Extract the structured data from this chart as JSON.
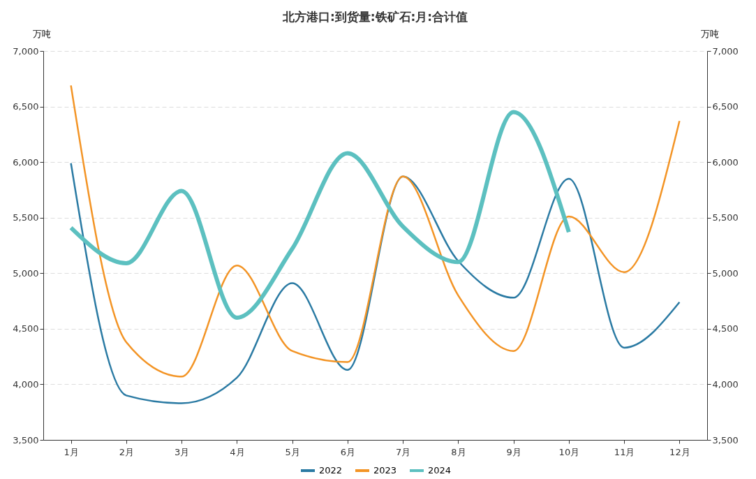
{
  "chart_data": {
    "type": "line",
    "title": "北方港口:到货量:铁矿石:月:合计值",
    "ylabel": "万吨",
    "y2label": "万吨",
    "categories": [
      "1月",
      "2月",
      "3月",
      "4月",
      "5月",
      "6月",
      "7月",
      "8月",
      "9月",
      "10月",
      "11月",
      "12月"
    ],
    "series": [
      {
        "name": "2022",
        "color": "#2a7aa3",
        "values": [
          5990,
          3900,
          3830,
          4060,
          4910,
          4130,
          5870,
          5110,
          4780,
          5850,
          4330,
          4740
        ]
      },
      {
        "name": "2023",
        "color": "#f39425",
        "values": [
          6690,
          4380,
          4070,
          5070,
          4300,
          4200,
          5870,
          4800,
          4300,
          5510,
          5010,
          6370
        ]
      },
      {
        "name": "2024",
        "color": "#5cc0c0",
        "values": [
          5410,
          5090,
          5740,
          4600,
          5220,
          6080,
          5420,
          5100,
          6450,
          5370,
          null,
          null
        ]
      }
    ],
    "ylim": [
      3500,
      7000
    ],
    "yticks": [
      {
        "value": 3500,
        "label": "3,500"
      },
      {
        "value": 4000,
        "label": "4,000"
      },
      {
        "value": 4500,
        "label": "4,500"
      },
      {
        "value": 5000,
        "label": "5,000"
      },
      {
        "value": 5500,
        "label": "5,500"
      },
      {
        "value": 6000,
        "label": "6,000"
      },
      {
        "value": 6500,
        "label": "6,500"
      },
      {
        "value": 7000,
        "label": "7,000"
      }
    ],
    "y2lim": [
      3500,
      7000
    ],
    "y2ticks": [
      {
        "value": 3500,
        "label": "3,500"
      },
      {
        "value": 4000,
        "label": "4,000"
      },
      {
        "value": 4500,
        "label": "4,500"
      },
      {
        "value": 5000,
        "label": "5,000"
      },
      {
        "value": 5500,
        "label": "5,500"
      },
      {
        "value": 6000,
        "label": "6,000"
      },
      {
        "value": 6500,
        "label": "6,500"
      },
      {
        "value": 7000,
        "label": "7,000"
      }
    ],
    "grid": "y",
    "legend": "bottom",
    "marker": "none",
    "line_style": "solid"
  }
}
